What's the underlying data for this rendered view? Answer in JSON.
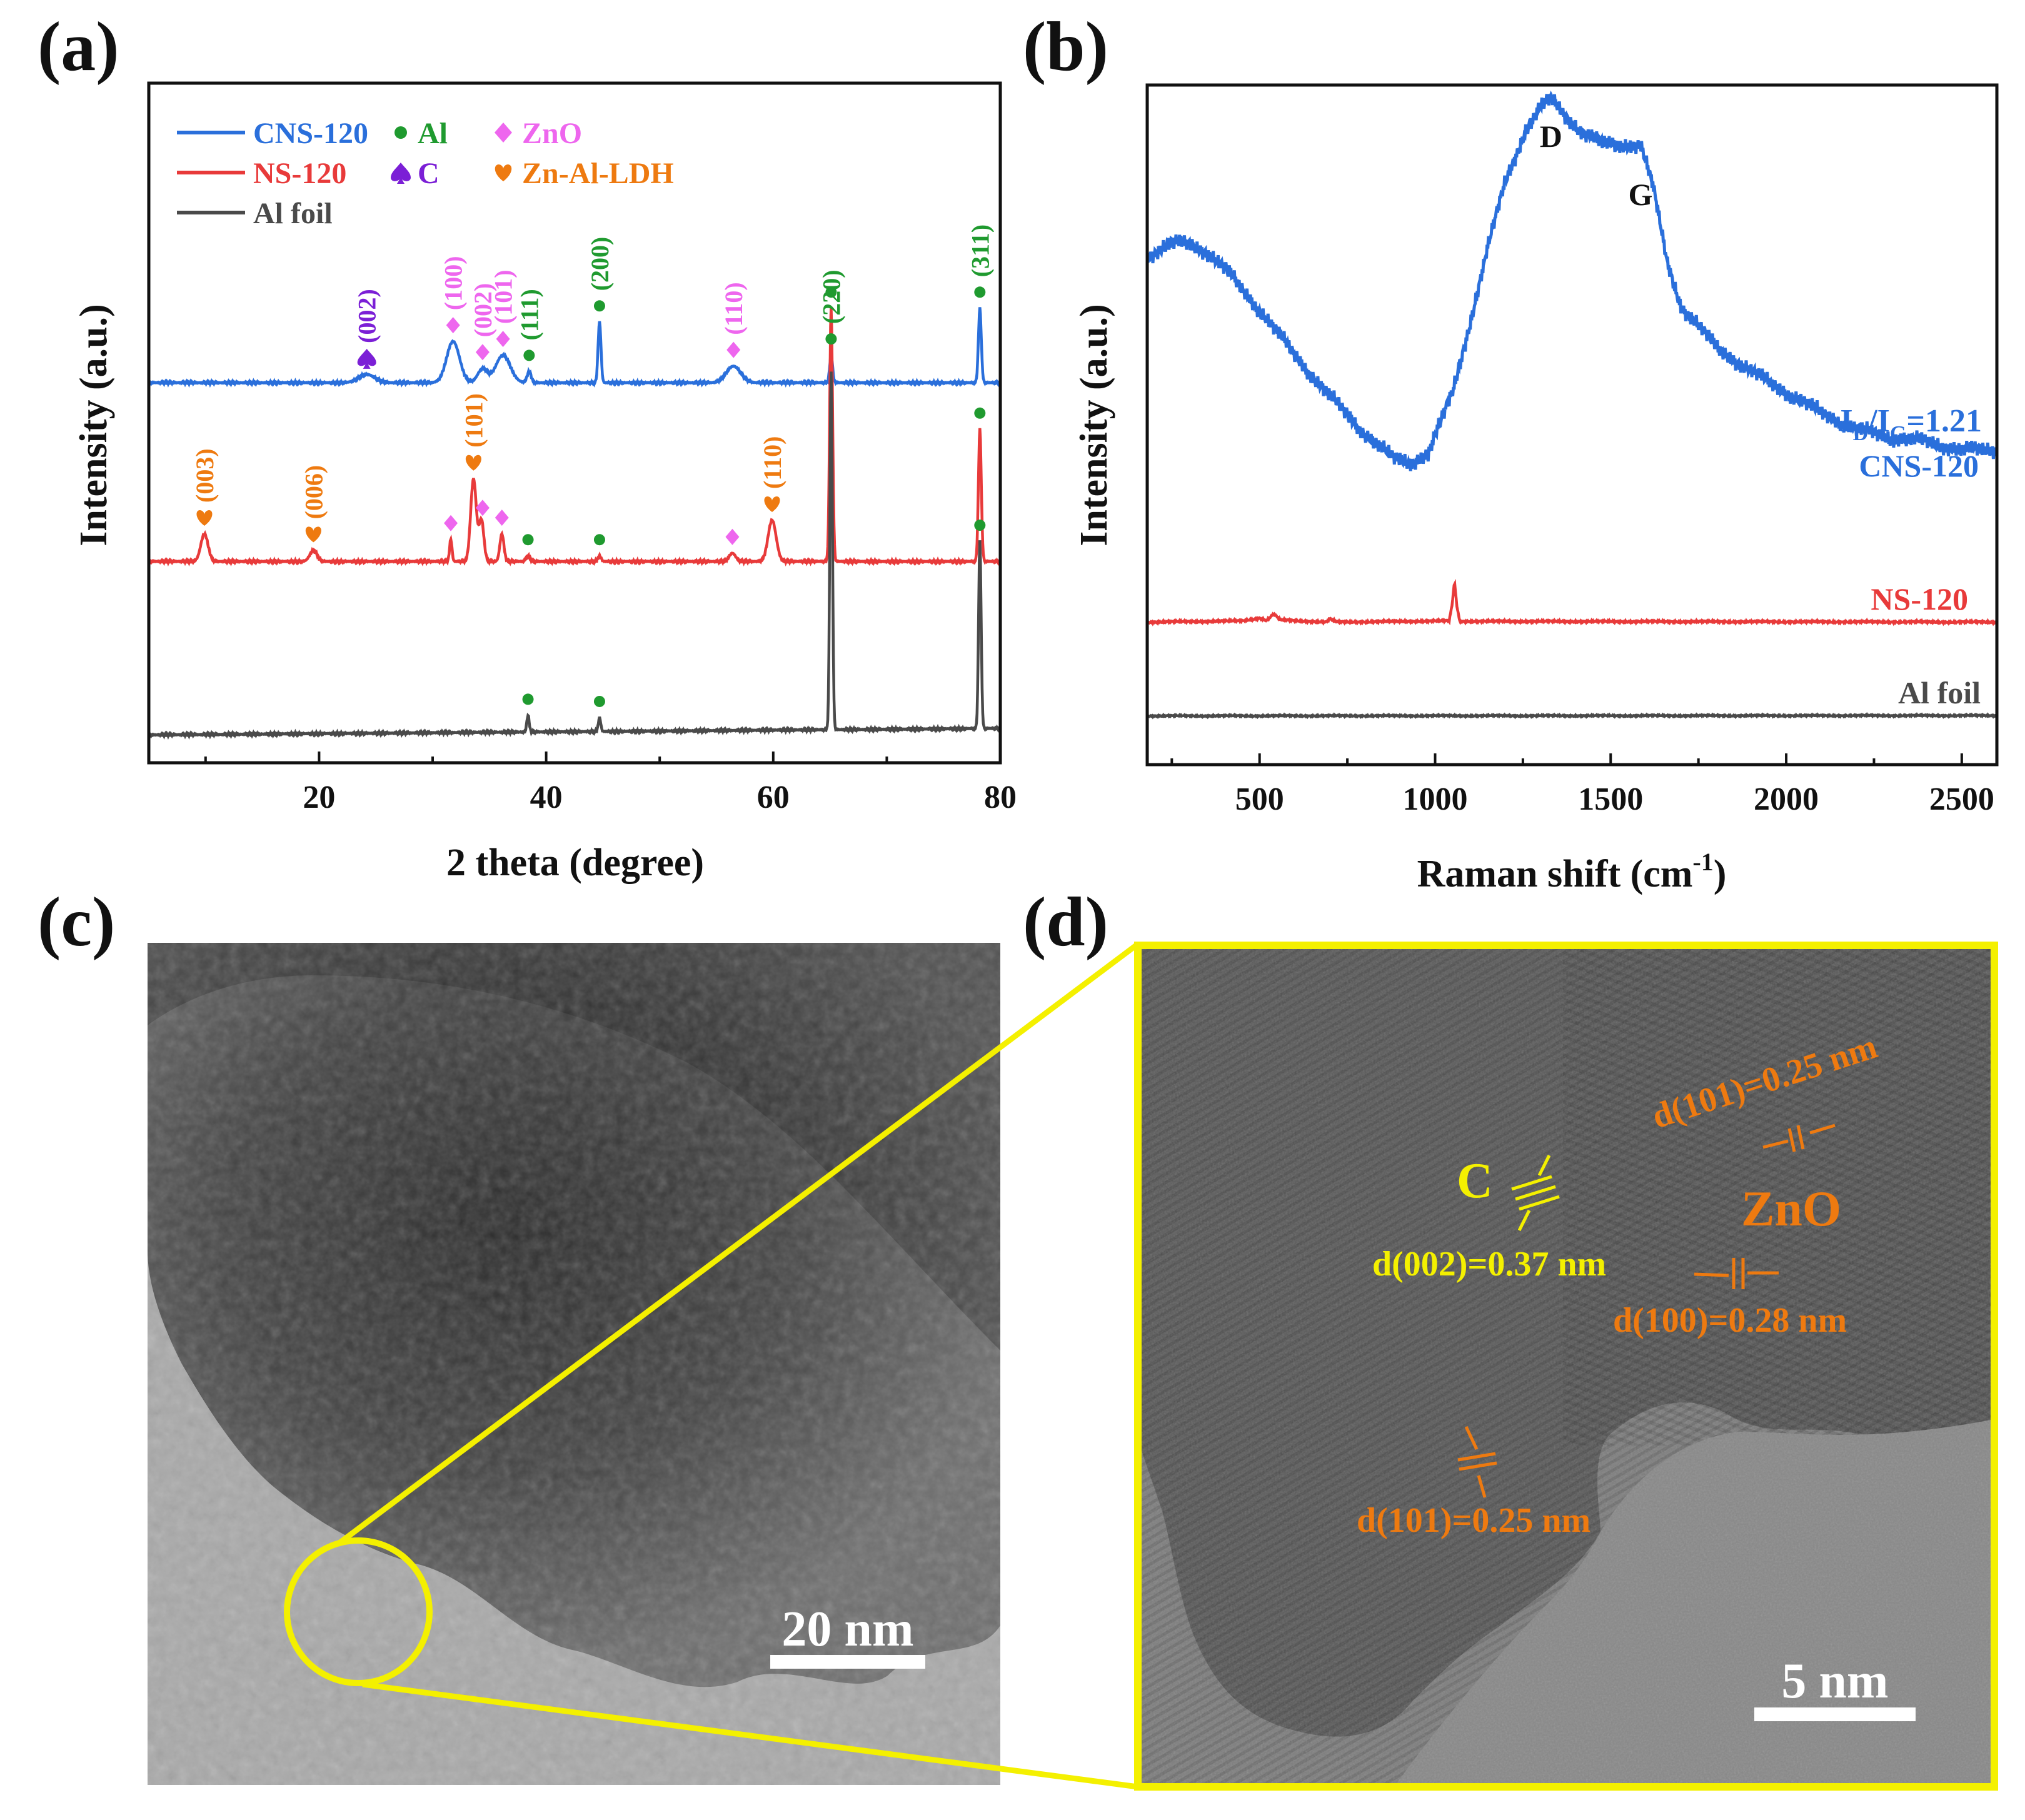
{
  "panel_labels": {
    "a": "(a)",
    "b": "(b)",
    "c": "(c)",
    "d": "(d)"
  },
  "colors": {
    "cns": "#2a6fdb",
    "ns": "#e83a3a",
    "al_foil": "#4a4a4a",
    "al": "#1f9a2f",
    "c": "#7b1fd6",
    "zno": "#ee66ee",
    "ldh": "#ee7a10",
    "tem_yellow": "#f4f000",
    "tem_orange": "#ee7a10"
  },
  "chart_data": [
    {
      "panel": "a",
      "type": "line",
      "title": "",
      "xlabel": "2 theta (degree)",
      "ylabel": "Intensity (a.u.)",
      "xlim": [
        5,
        80
      ],
      "xticks": [
        20,
        40,
        60,
        80
      ],
      "grid": false,
      "legend": {
        "placement": "top-left",
        "lines": [
          {
            "label": "CNS-120",
            "series": "cns"
          },
          {
            "label": "NS-120",
            "series": "ns"
          },
          {
            "label": "Al foil",
            "series": "al_foil"
          }
        ],
        "markers": [
          {
            "label": "Al",
            "symbol": "dot",
            "color_key": "al"
          },
          {
            "label": "C",
            "symbol": "spade",
            "color_key": "c"
          },
          {
            "label": "ZnO",
            "symbol": "diamond",
            "color_key": "zno"
          },
          {
            "label": "Zn-Al-LDH",
            "symbol": "heart",
            "color_key": "ldh"
          }
        ]
      },
      "series": [
        {
          "key": "cns",
          "name": "CNS-120",
          "baseline": 0.9,
          "peaks": [
            [
              24.2,
              0.03,
              1.0
            ],
            [
              31.8,
              0.15,
              0.8
            ],
            [
              34.4,
              0.05,
              0.6
            ],
            [
              36.2,
              0.1,
              0.9
            ],
            [
              38.5,
              0.04,
              0.25
            ],
            [
              44.7,
              0.22,
              0.18
            ],
            [
              56.5,
              0.06,
              0.9
            ],
            [
              65.1,
              0.1,
              0.18
            ],
            [
              78.2,
              0.27,
              0.18
            ]
          ]
        },
        {
          "key": "ns",
          "name": "NS-120",
          "baseline": 0.0,
          "peaks": [
            [
              9.9,
              0.1,
              0.45
            ],
            [
              19.5,
              0.04,
              0.45
            ],
            [
              31.6,
              0.08,
              0.15
            ],
            [
              33.6,
              0.3,
              0.35
            ],
            [
              34.3,
              0.15,
              0.3
            ],
            [
              36.1,
              0.1,
              0.25
            ],
            [
              38.4,
              0.02,
              0.25
            ],
            [
              44.7,
              0.02,
              0.2
            ],
            [
              56.4,
              0.03,
              0.4
            ],
            [
              59.9,
              0.15,
              0.5
            ],
            [
              65.1,
              0.92,
              0.18
            ],
            [
              78.2,
              0.48,
              0.18
            ]
          ]
        },
        {
          "key": "al_foil",
          "name": "Al foil",
          "baseline": 0.0,
          "peaks": [
            [
              38.4,
              0.06,
              0.15
            ],
            [
              44.7,
              0.05,
              0.15
            ],
            [
              65.1,
              1.3,
              0.16
            ],
            [
              78.2,
              0.68,
              0.16
            ]
          ]
        }
      ],
      "annotations": [
        {
          "series": "cns",
          "x": 24.2,
          "symbol": "spade",
          "color_key": "c",
          "label": "(002)"
        },
        {
          "series": "cns",
          "x": 31.8,
          "symbol": "diamond",
          "color_key": "zno",
          "label": "(100)"
        },
        {
          "series": "cns",
          "x": 34.4,
          "symbol": "diamond",
          "color_key": "zno",
          "label": "(002)"
        },
        {
          "series": "cns",
          "x": 36.2,
          "symbol": "diamond",
          "color_key": "zno",
          "label": "(101)"
        },
        {
          "series": "cns",
          "x": 38.5,
          "symbol": "dot",
          "color_key": "al",
          "label": "(111)"
        },
        {
          "series": "cns",
          "x": 44.7,
          "symbol": "dot",
          "color_key": "al",
          "label": "(200)"
        },
        {
          "series": "cns",
          "x": 56.5,
          "symbol": "diamond",
          "color_key": "zno",
          "label": "(110)"
        },
        {
          "series": "cns",
          "x": 65.1,
          "symbol": "dot",
          "color_key": "al",
          "label": "(220)"
        },
        {
          "series": "cns",
          "x": 78.2,
          "symbol": "dot",
          "color_key": "al",
          "label": "(311)"
        },
        {
          "series": "ns",
          "x": 9.9,
          "symbol": "heart",
          "color_key": "ldh",
          "label": "(003)"
        },
        {
          "series": "ns",
          "x": 19.5,
          "symbol": "heart",
          "color_key": "ldh",
          "label": "(006)"
        },
        {
          "series": "ns",
          "x": 31.6,
          "symbol": "diamond",
          "color_key": "zno",
          "label": ""
        },
        {
          "series": "ns",
          "x": 33.6,
          "symbol": "heart",
          "color_key": "ldh",
          "label": "(101)"
        },
        {
          "series": "ns",
          "x": 34.4,
          "symbol": "diamond",
          "color_key": "zno",
          "label": ""
        },
        {
          "series": "ns",
          "x": 36.1,
          "symbol": "diamond",
          "color_key": "zno",
          "label": ""
        },
        {
          "series": "ns",
          "x": 38.4,
          "symbol": "dot",
          "color_key": "al",
          "label": ""
        },
        {
          "series": "ns",
          "x": 44.7,
          "symbol": "dot",
          "color_key": "al",
          "label": ""
        },
        {
          "series": "ns",
          "x": 56.4,
          "symbol": "diamond",
          "color_key": "zno",
          "label": ""
        },
        {
          "series": "ns",
          "x": 59.9,
          "symbol": "heart",
          "color_key": "ldh",
          "label": "(110)"
        },
        {
          "series": "ns",
          "x": 65.1,
          "symbol": "dot",
          "color_key": "al",
          "label": ""
        },
        {
          "series": "ns",
          "x": 78.2,
          "symbol": "dot",
          "color_key": "al",
          "label": ""
        },
        {
          "series": "al_foil",
          "x": 38.4,
          "symbol": "dot",
          "color_key": "al",
          "label": ""
        },
        {
          "series": "al_foil",
          "x": 44.7,
          "symbol": "dot",
          "color_key": "al",
          "label": ""
        },
        {
          "series": "al_foil",
          "x": 78.2,
          "symbol": "dot",
          "color_key": "al",
          "label": ""
        }
      ]
    },
    {
      "panel": "b",
      "type": "line",
      "title": "",
      "xlabel": "Raman shift (cm",
      "xlabel_superscript": "-1",
      "xlabel_close": ")",
      "ylabel": "Intensity (a.u.)",
      "xlim": [
        180,
        2600
      ],
      "xticks": [
        500,
        1000,
        1500,
        2000,
        2500
      ],
      "grid": false,
      "series": [
        {
          "key": "cns",
          "name": "CNS-120",
          "points": [
            [
              180,
              0.66
            ],
            [
              250,
              0.69
            ],
            [
              300,
              0.69
            ],
            [
              350,
              0.67
            ],
            [
              400,
              0.63
            ],
            [
              500,
              0.53
            ],
            [
              600,
              0.42
            ],
            [
              700,
              0.32
            ],
            [
              800,
              0.23
            ],
            [
              880,
              0.17
            ],
            [
              930,
              0.16
            ],
            [
              980,
              0.18
            ],
            [
              1050,
              0.33
            ],
            [
              1100,
              0.5
            ],
            [
              1150,
              0.68
            ],
            [
              1200,
              0.84
            ],
            [
              1260,
              0.97
            ],
            [
              1300,
              1.02
            ],
            [
              1330,
              1.04
            ],
            [
              1370,
              1.0
            ],
            [
              1420,
              0.96
            ],
            [
              1480,
              0.93
            ],
            [
              1540,
              0.93
            ],
            [
              1585,
              0.93
            ],
            [
              1620,
              0.83
            ],
            [
              1660,
              0.65
            ],
            [
              1700,
              0.54
            ],
            [
              1800,
              0.44
            ],
            [
              1900,
              0.38
            ],
            [
              2000,
              0.33
            ],
            [
              2100,
              0.28
            ],
            [
              2200,
              0.24
            ],
            [
              2300,
              0.22
            ],
            [
              2400,
              0.21
            ],
            [
              2500,
              0.19
            ],
            [
              2600,
              0.19
            ]
          ]
        },
        {
          "key": "ns",
          "name": "NS-120",
          "points": [
            [
              180,
              0.0
            ],
            [
              450,
              0.003
            ],
            [
              500,
              0.01
            ],
            [
              520,
              0.004
            ],
            [
              540,
              0.02
            ],
            [
              560,
              0.005
            ],
            [
              690,
              0.0
            ],
            [
              700,
              0.008
            ],
            [
              720,
              0.0
            ],
            [
              1040,
              0.003
            ],
            [
              1048,
              0.04
            ],
            [
              1055,
              0.1
            ],
            [
              1062,
              0.04
            ],
            [
              1070,
              0.002
            ],
            [
              2600,
              0.0
            ]
          ]
        },
        {
          "key": "al_foil",
          "name": "Al foil",
          "points": [
            [
              180,
              0.0
            ],
            [
              2600,
              0.001
            ]
          ]
        }
      ],
      "annotations": [
        {
          "text": "D",
          "x": 1330
        },
        {
          "text": "G",
          "x": 1585
        }
      ],
      "curve_labels": {
        "ratio_I": "I",
        "ratio_D": "D",
        "ratio_slash": "/I",
        "ratio_G": "G",
        "ratio_value": "=1.21",
        "cns": "CNS-120",
        "ns": "NS-120",
        "al_foil": "Al foil"
      }
    }
  ],
  "tem_c": {
    "scale_bar": "20 nm"
  },
  "tem_d": {
    "scale_bar": "5 nm",
    "phase_c": "C",
    "phase_zno": "ZnO",
    "d_c002": "d(002)=0.37 nm",
    "d_zno101_top": "d(101)=0.25 nm",
    "d_zno100": "d(100)=0.28 nm",
    "d_zno101_bottom": "d(101)=0.25 nm"
  }
}
